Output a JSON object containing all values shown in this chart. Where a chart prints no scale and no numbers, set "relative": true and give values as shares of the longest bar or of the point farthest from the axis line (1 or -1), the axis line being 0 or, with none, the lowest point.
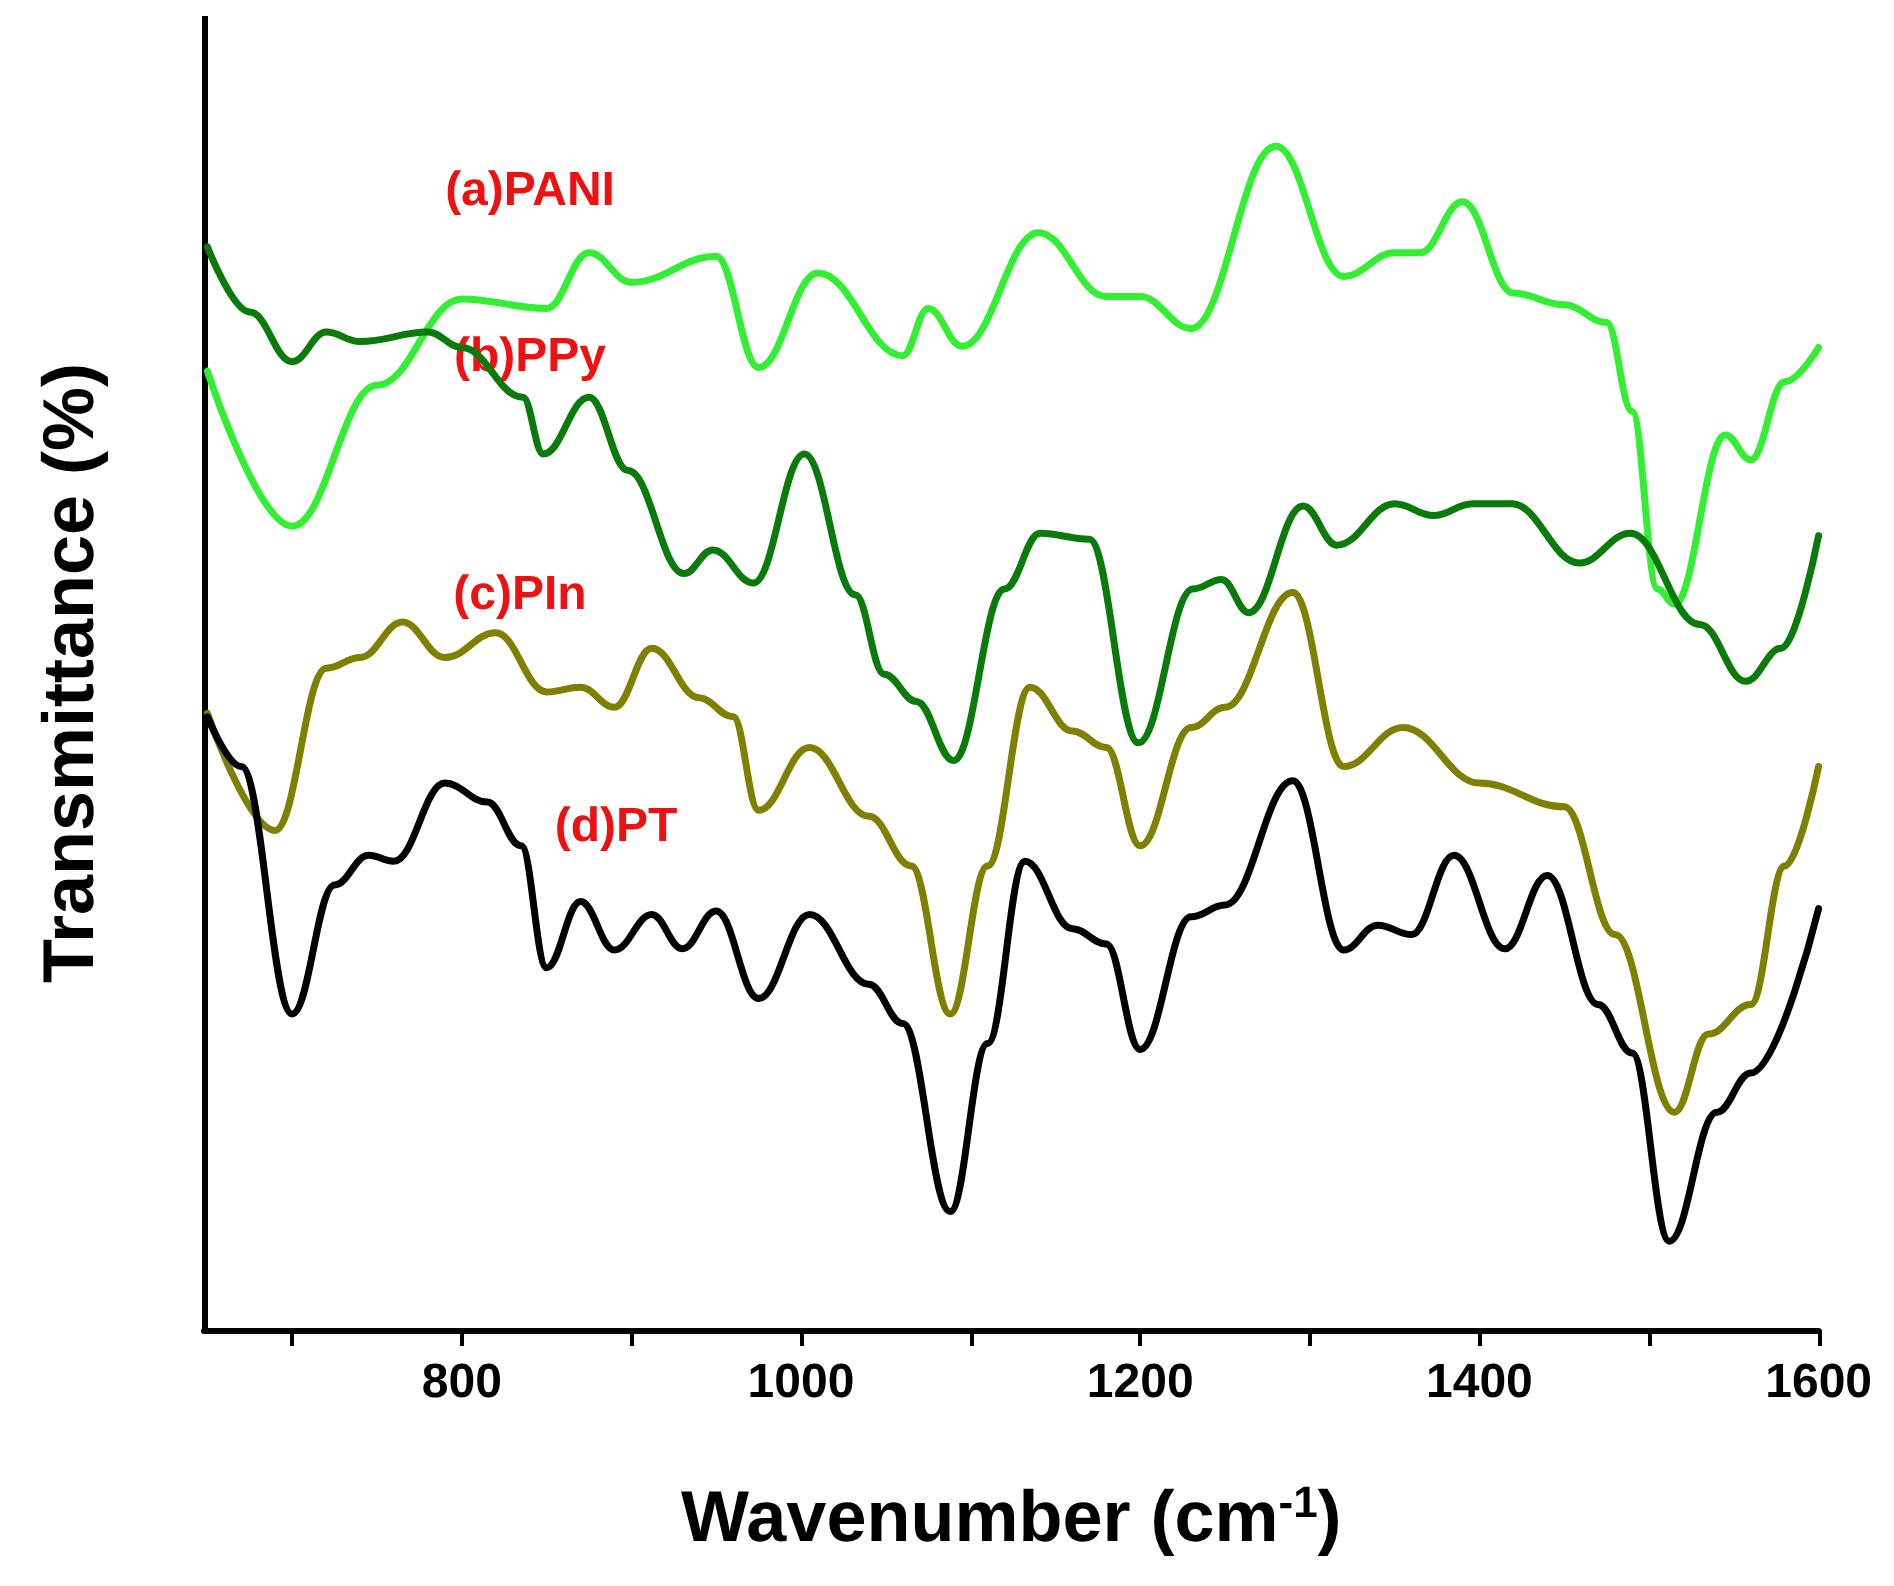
{
  "chart_data": {
    "type": "line",
    "xlabel": "Wavenumber (cm$^{-1}$)",
    "ylabel": "Transmittance (%)",
    "relative": true,
    "xlim": [
      648,
      1600
    ],
    "xticks": [
      {
        "value": 700,
        "label": null
      },
      800,
      {
        "value": 900,
        "label": null
      },
      1000,
      {
        "value": 1100,
        "label": null
      },
      1200,
      {
        "value": 1300,
        "label": null
      },
      1400,
      {
        "value": 1500,
        "label": null
      },
      1600
    ],
    "marker": "none",
    "line_style": "solid",
    "annotations": [
      "(a)PANI",
      "(b)PPy",
      "(c)PIn",
      "(d)PT"
    ],
    "series": [
      {
        "color": "#33ee33",
        "x": [
          650,
          700,
          750,
          800,
          850,
          875,
          900,
          950,
          975,
          1010,
          1060,
          1075,
          1095,
          1140,
          1180,
          1200,
          1230,
          1280,
          1320,
          1350,
          1365,
          1390,
          1420,
          1450,
          1475,
          1490,
          1505,
          1515,
          1545,
          1560,
          1580,
          1600
        ],
        "values": [
          0.81,
          0.679,
          0.798,
          0.871,
          0.863,
          0.91,
          0.885,
          0.907,
          0.813,
          0.893,
          0.823,
          0.863,
          0.831,
          0.927,
          0.873,
          0.873,
          0.846,
          1.0,
          0.89,
          0.91,
          0.91,
          0.953,
          0.876,
          0.866,
          0.851,
          0.776,
          0.626,
          0.613,
          0.756,
          0.735,
          0.801,
          0.83
        ]
      },
      {
        "color": "#0a7a0a",
        "x": [
          650,
          675,
          700,
          720,
          740,
          780,
          800,
          836,
          848,
          875,
          898,
          931,
          948,
          972,
          1002,
          1032,
          1049,
          1068,
          1090,
          1120,
          1141,
          1170,
          1199,
          1231,
          1248,
          1264,
          1296,
          1316,
          1350,
          1373,
          1396,
          1419,
          1459,
          1489,
          1530,
          1557,
          1578,
          1600
        ],
        "values": [
          0.915,
          0.86,
          0.818,
          0.843,
          0.835,
          0.843,
          0.83,
          0.788,
          0.74,
          0.788,
          0.726,
          0.639,
          0.659,
          0.631,
          0.74,
          0.621,
          0.554,
          0.531,
          0.481,
          0.626,
          0.673,
          0.668,
          0.496,
          0.626,
          0.634,
          0.606,
          0.696,
          0.663,
          0.698,
          0.688,
          0.698,
          0.698,
          0.648,
          0.673,
          0.596,
          0.548,
          0.576,
          0.671
        ]
      },
      {
        "color": "#7f7f00",
        "x": [
          650,
          690,
          720,
          740,
          765,
          790,
          820,
          850,
          870,
          890,
          912,
          940,
          960,
          975,
          1005,
          1040,
          1065,
          1088,
          1110,
          1135,
          1160,
          1180,
          1200,
          1230,
          1250,
          1290,
          1320,
          1355,
          1400,
          1450,
          1480,
          1515,
          1535,
          1560,
          1580,
          1600
        ],
        "values": [
          0.521,
          0.422,
          0.559,
          0.568,
          0.598,
          0.568,
          0.589,
          0.539,
          0.543,
          0.526,
          0.576,
          0.534,
          0.518,
          0.439,
          0.492,
          0.434,
          0.392,
          0.267,
          0.392,
          0.543,
          0.506,
          0.492,
          0.409,
          0.509,
          0.526,
          0.623,
          0.476,
          0.509,
          0.462,
          0.442,
          0.334,
          0.184,
          0.25,
          0.275,
          0.392,
          0.476
        ]
      },
      {
        "color": "#000000",
        "x": [
          650,
          670,
          700,
          725,
          745,
          760,
          790,
          815,
          835,
          850,
          870,
          890,
          912,
          930,
          950,
          975,
          1005,
          1040,
          1060,
          1088,
          1110,
          1132,
          1160,
          1180,
          1200,
          1230,
          1250,
          1290,
          1320,
          1340,
          1360,
          1385,
          1415,
          1440,
          1470,
          1490,
          1512,
          1540,
          1560,
          1600
        ],
        "values": [
          0.518,
          0.476,
          0.267,
          0.376,
          0.401,
          0.396,
          0.462,
          0.446,
          0.409,
          0.306,
          0.362,
          0.321,
          0.351,
          0.322,
          0.354,
          0.28,
          0.351,
          0.292,
          0.259,
          0.1,
          0.242,
          0.396,
          0.339,
          0.326,
          0.237,
          0.349,
          0.359,
          0.464,
          0.321,
          0.342,
          0.334,
          0.401,
          0.322,
          0.384,
          0.275,
          0.234,
          0.075,
          0.184,
          0.217,
          0.356
        ]
      }
    ]
  }
}
